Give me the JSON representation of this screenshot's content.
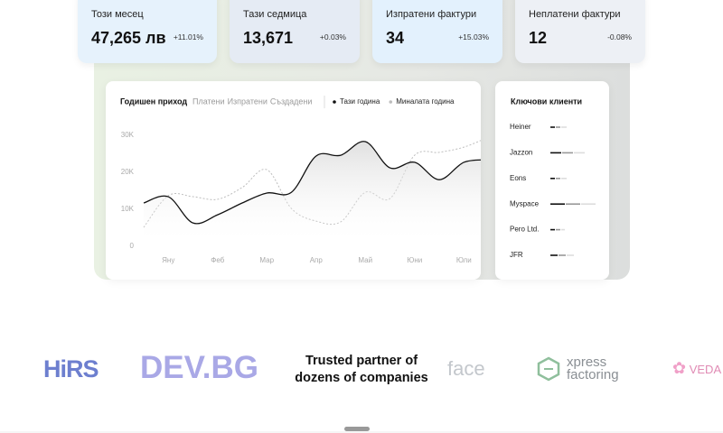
{
  "stats": [
    {
      "label": "Този месец",
      "value": "47,265 лв",
      "change": "+11.01%"
    },
    {
      "label": "Тази седмица",
      "value": "13,671",
      "change": "+0.03%"
    },
    {
      "label": "Изпратени фактури",
      "value": "34",
      "change": "+15.03%"
    },
    {
      "label": "Неплатени фактури",
      "value": "12",
      "change": "-0.08%"
    }
  ],
  "chart_data": {
    "type": "line",
    "title": "Годишен приход",
    "tabs": [
      "Платени",
      "Изпратени",
      "Създадени"
    ],
    "categories": [
      null,
      "Яну",
      null,
      "Феб",
      null,
      "Мар",
      null,
      "Апр",
      null,
      "Май",
      null,
      "Юни",
      null,
      "Юли",
      null
    ],
    "series": [
      {
        "name": "Тази година",
        "color": "#111111",
        "values": [
          11700,
          13400,
          6300,
          8500,
          11700,
          14400,
          14600,
          24400,
          24600,
          28300,
          21200,
          22700,
          18000,
          22700,
          23400
        ]
      },
      {
        "name": "Миналата година",
        "color": "#bdbdbd",
        "dashed": true,
        "values": [
          5100,
          13700,
          13400,
          12700,
          15900,
          20700,
          10200,
          6800,
          6600,
          14600,
          12900,
          24600,
          25400,
          26800,
          29500
        ]
      }
    ],
    "ylim": [
      0,
      30000
    ],
    "yticks": [
      0,
      {
        "value": 10000,
        "label": "10K"
      },
      {
        "value": 20000,
        "label": "20K"
      },
      {
        "value": 30000,
        "label": "30K"
      }
    ]
  },
  "clients": {
    "title": "Ключови клиенти",
    "colors": [
      "#111111",
      "#999999",
      "#dddddd"
    ],
    "items": [
      {
        "name": "Heiner",
        "bars": [
          5,
          5,
          6
        ]
      },
      {
        "name": "Jazzon",
        "bars": [
          12,
          12,
          12
        ]
      },
      {
        "name": "Eons",
        "bars": [
          5,
          5,
          6
        ]
      },
      {
        "name": "Myspace",
        "bars": [
          16,
          16,
          16
        ]
      },
      {
        "name": "Pero Ltd.",
        "bars": [
          5,
          5,
          4
        ]
      },
      {
        "name": "JFR",
        "bars": [
          8,
          8,
          8
        ]
      }
    ]
  },
  "partners": {
    "hrs": "HiRS",
    "devbg": "DEV.BG",
    "tagline": [
      "Trusted partner of",
      "dozens of companies"
    ],
    "face": "face",
    "xpress": [
      "xpress",
      "factoring"
    ],
    "veda": "VEDA"
  }
}
